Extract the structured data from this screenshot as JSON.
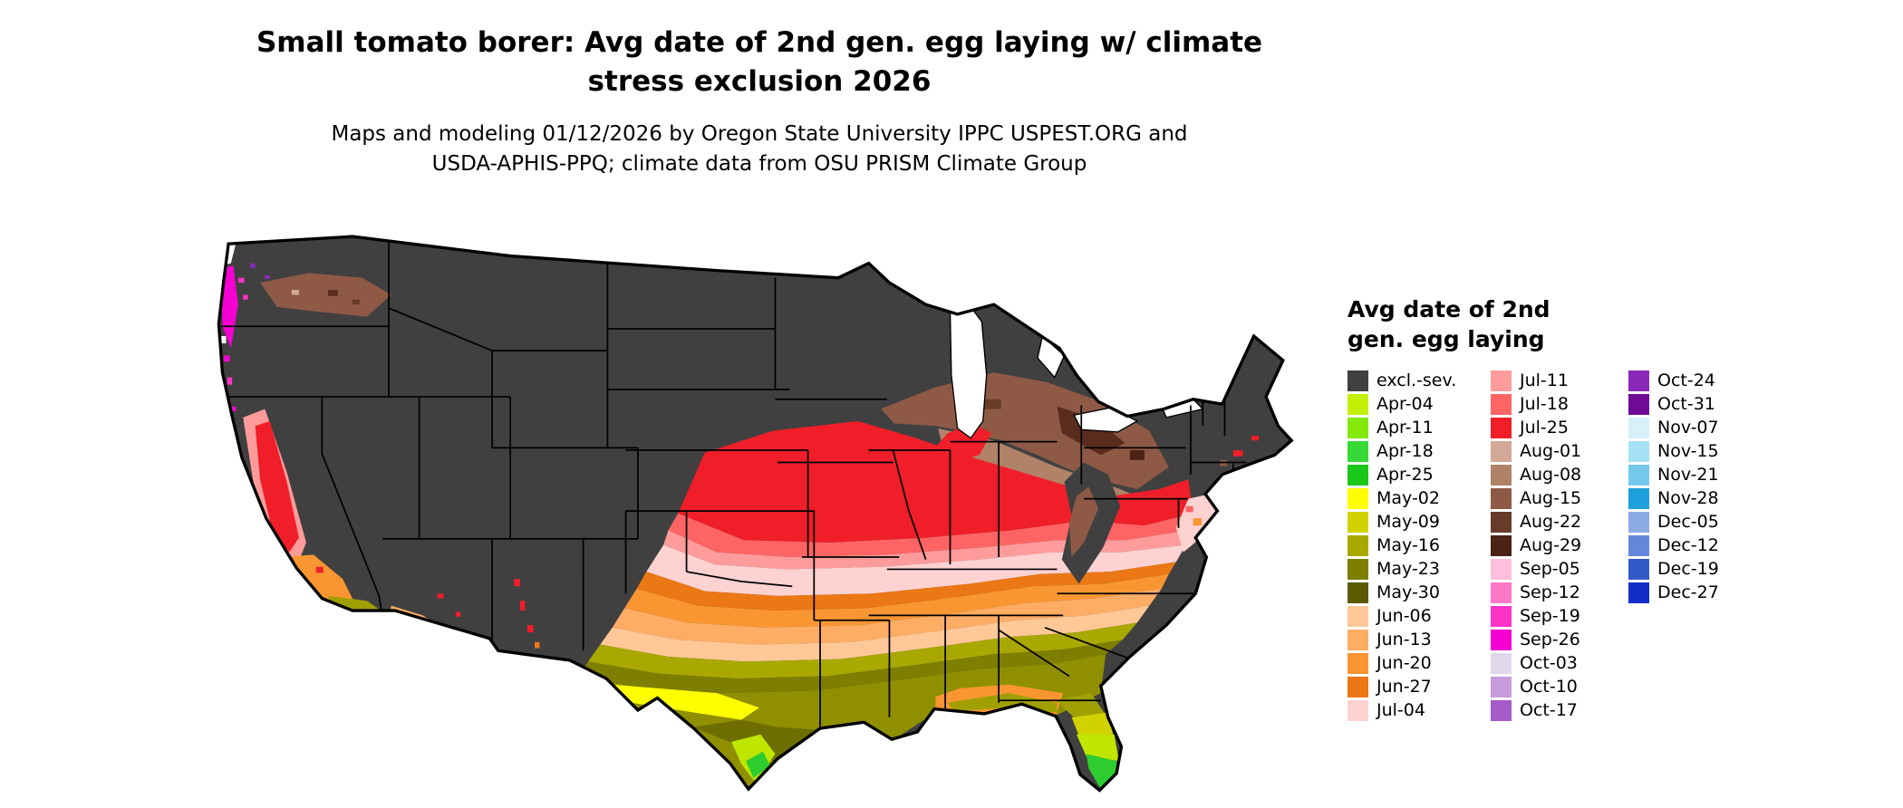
{
  "header": {
    "title_line1": "Small tomato borer: Avg date of 2nd gen. egg laying w/ climate",
    "title_line2": "stress exclusion 2026",
    "subtitle_line1": "Maps and modeling 01/12/2026 by Oregon State University IPPC USPEST.ORG and",
    "subtitle_line2": "USDA-APHIS-PPQ; climate data from OSU PRISM Climate Group"
  },
  "legend": {
    "title_line1": "Avg date of 2nd",
    "title_line2": "gen. egg laying",
    "columns": [
      {
        "entries": [
          {
            "label": "excl.-sev.",
            "color": "#404040"
          },
          {
            "label": "Apr-04",
            "color": "#C3F000"
          },
          {
            "label": "Apr-11",
            "color": "#84E80A"
          },
          {
            "label": "Apr-18",
            "color": "#36D936"
          },
          {
            "label": "Apr-25",
            "color": "#19C819"
          },
          {
            "label": "May-02",
            "color": "#FFFF00"
          },
          {
            "label": "May-09",
            "color": "#D2D200"
          },
          {
            "label": "May-16",
            "color": "#A8A800"
          },
          {
            "label": "May-23",
            "color": "#7E7E00"
          },
          {
            "label": "May-30",
            "color": "#5A5A00"
          },
          {
            "label": "Jun-06",
            "color": "#FFC896"
          },
          {
            "label": "Jun-13",
            "color": "#FFAC64"
          },
          {
            "label": "Jun-20",
            "color": "#FA9632"
          },
          {
            "label": "Jun-27",
            "color": "#EB7814"
          },
          {
            "label": "Jul-04",
            "color": "#FFD2D2"
          }
        ]
      },
      {
        "entries": [
          {
            "label": "Jul-11",
            "color": "#FF9B9B"
          },
          {
            "label": "Jul-18",
            "color": "#FF6464"
          },
          {
            "label": "Jul-25",
            "color": "#F01E28"
          },
          {
            "label": "Aug-01",
            "color": "#D2A896"
          },
          {
            "label": "Aug-08",
            "color": "#B08268"
          },
          {
            "label": "Aug-15",
            "color": "#8E5A46"
          },
          {
            "label": "Aug-22",
            "color": "#663C28"
          },
          {
            "label": "Aug-29",
            "color": "#4A2314"
          },
          {
            "label": "Sep-05",
            "color": "#FFBEDC"
          },
          {
            "label": "Sep-12",
            "color": "#FF78C8"
          },
          {
            "label": "Sep-19",
            "color": "#FF32C8"
          },
          {
            "label": "Sep-26",
            "color": "#F500D2"
          },
          {
            "label": "Oct-03",
            "color": "#E1D7EB"
          },
          {
            "label": "Oct-10",
            "color": "#C89BDC"
          },
          {
            "label": "Oct-17",
            "color": "#A55AC8"
          }
        ]
      },
      {
        "entries": [
          {
            "label": "Oct-24",
            "color": "#8C28B9"
          },
          {
            "label": "Oct-31",
            "color": "#6E0A96"
          },
          {
            "label": "Nov-07",
            "color": "#D7F0FA"
          },
          {
            "label": "Nov-15",
            "color": "#A5E1F5"
          },
          {
            "label": "Nov-21",
            "color": "#73C8EB"
          },
          {
            "label": "Nov-28",
            "color": "#1EA0DC"
          },
          {
            "label": "Dec-05",
            "color": "#8CAAE6"
          },
          {
            "label": "Dec-12",
            "color": "#6487DC"
          },
          {
            "label": "Dec-19",
            "color": "#325AC8"
          },
          {
            "label": "Dec-27",
            "color": "#142DC8"
          }
        ]
      }
    ]
  }
}
